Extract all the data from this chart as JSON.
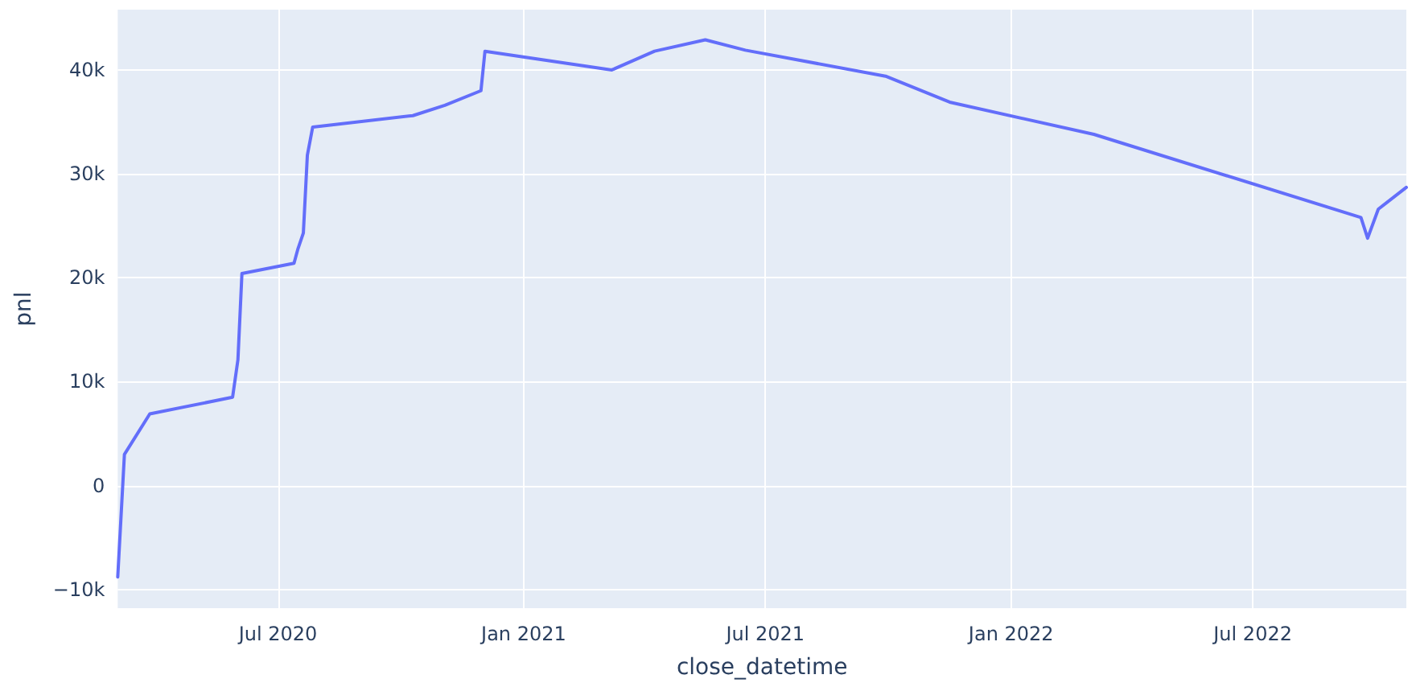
{
  "chart_data": {
    "type": "line",
    "xlabel": "close_datetime",
    "ylabel": "pnl",
    "x": [
      "2020-03-03",
      "2020-03-08",
      "2020-03-27",
      "2020-05-28",
      "2020-06-01",
      "2020-06-04",
      "2020-07-13",
      "2020-07-16",
      "2020-07-20",
      "2020-07-23",
      "2020-07-27",
      "2020-10-10",
      "2020-11-03",
      "2020-11-30",
      "2020-12-03",
      "2021-03-08",
      "2021-04-09",
      "2021-05-17",
      "2021-06-16",
      "2021-09-29",
      "2021-11-16",
      "2022-03-04",
      "2022-09-20",
      "2022-09-25",
      "2022-10-03",
      "2022-10-24"
    ],
    "series": [
      {
        "color": "#636efa",
        "values": [
          -8800,
          3000,
          6900,
          8500,
          12100,
          20400,
          21400,
          22800,
          24300,
          31800,
          34500,
          35600,
          36600,
          38000,
          41800,
          40000,
          41800,
          42900,
          41900,
          39400,
          36900,
          33800,
          25800,
          23800,
          26600,
          28700
        ]
      }
    ],
    "xlim": [
      "2020-03-03",
      "2022-10-24"
    ],
    "xticks": [
      {
        "value": "2020-07-01",
        "label": "Jul 2020"
      },
      {
        "value": "2021-01-01",
        "label": "Jan 2021"
      },
      {
        "value": "2021-07-01",
        "label": "Jul 2021"
      },
      {
        "value": "2022-01-01",
        "label": "Jan 2022"
      },
      {
        "value": "2022-07-01",
        "label": "Jul 2022"
      }
    ],
    "ylim": [
      -11800,
      45800
    ],
    "yticks": [
      {
        "value": -10000,
        "label": "−10k"
      },
      0,
      {
        "value": 10000,
        "label": "10k"
      },
      {
        "value": 20000,
        "label": "20k"
      },
      {
        "value": 30000,
        "label": "30k"
      },
      {
        "value": 40000,
        "label": "40k"
      }
    ],
    "grid": true,
    "marker": "none",
    "line_style": "solid"
  }
}
